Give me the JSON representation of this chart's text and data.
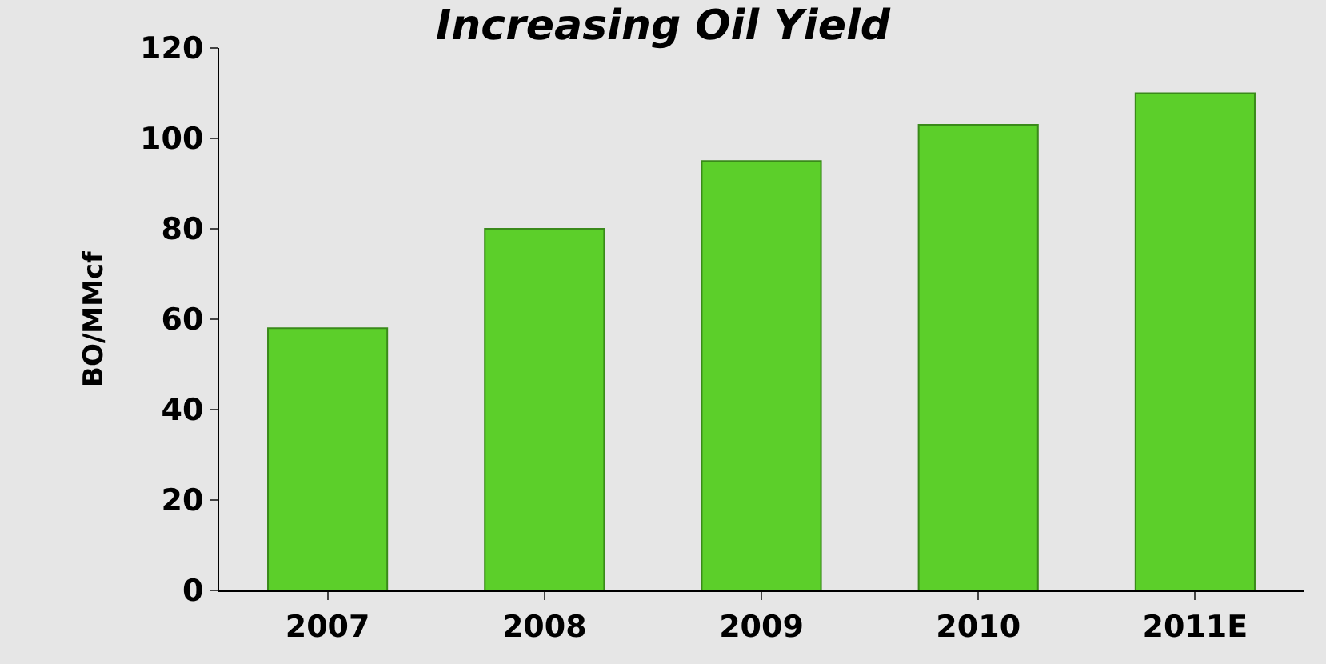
{
  "chart_data": {
    "type": "bar",
    "title": "Increasing Oil Yield",
    "ylabel": "BO/MMcf",
    "categories": [
      "2007",
      "2008",
      "2009",
      "2010",
      "2011E"
    ],
    "values": [
      58,
      80,
      95,
      103,
      110
    ],
    "color": "#5ccf2a",
    "ylim": [
      0,
      120
    ],
    "yticks": [
      0,
      20,
      40,
      60,
      80,
      100,
      120
    ],
    "grid": false
  }
}
